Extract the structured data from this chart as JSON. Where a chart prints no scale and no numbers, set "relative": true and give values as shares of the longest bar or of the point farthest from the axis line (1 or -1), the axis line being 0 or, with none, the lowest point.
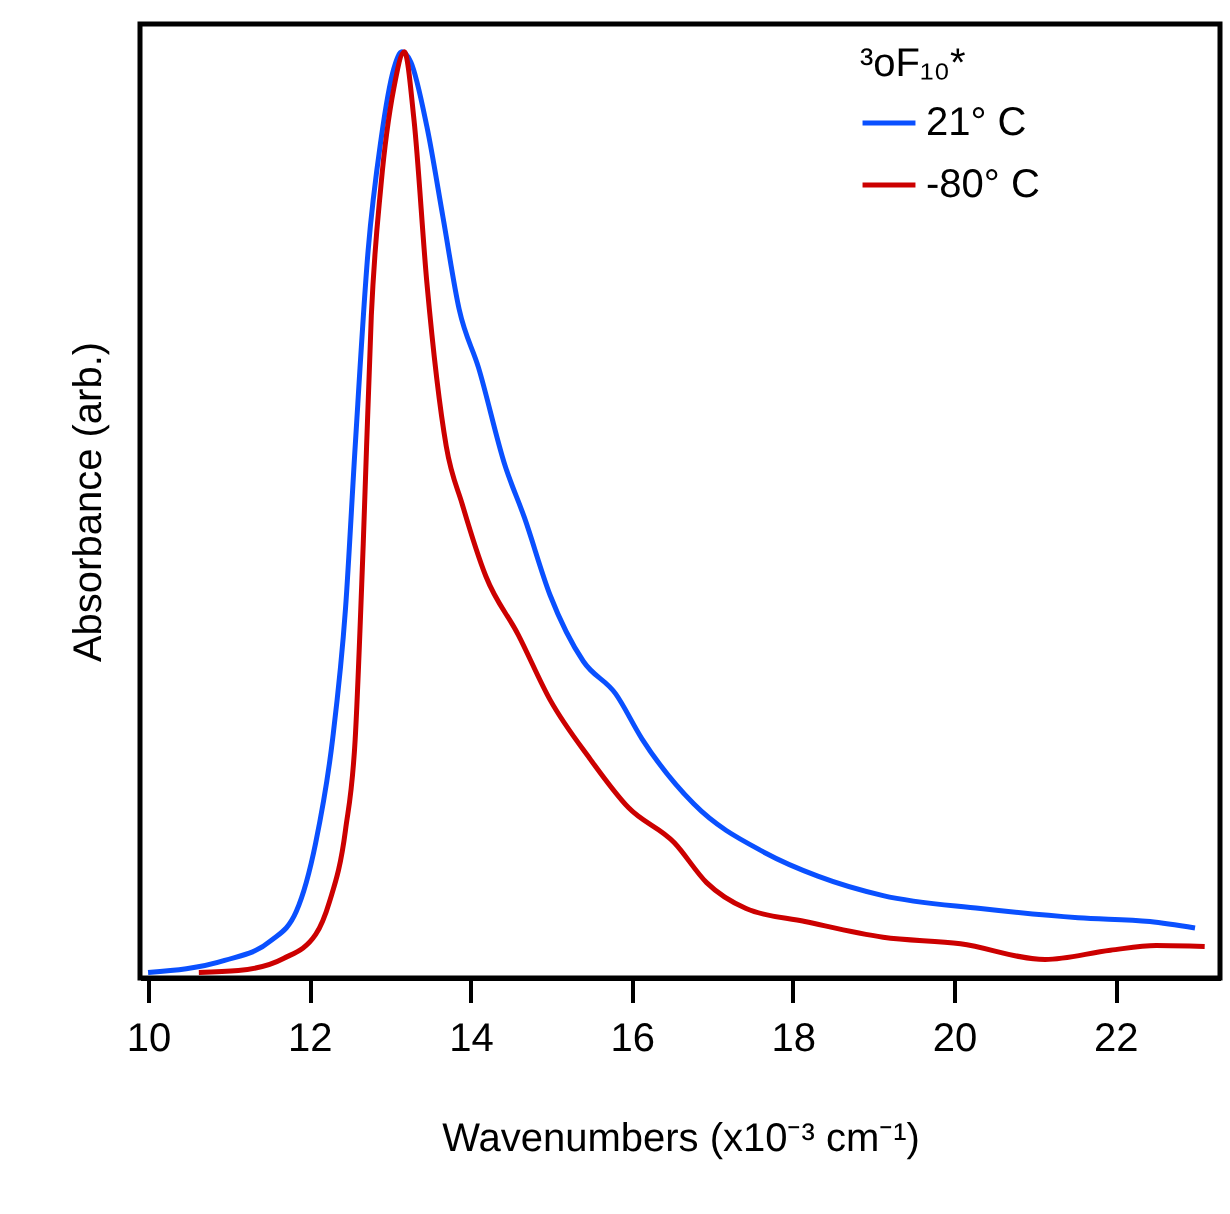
{
  "chart_data": {
    "type": "line",
    "relative": true,
    "xlabel": "Wavenumbers (x10⁻³ cm⁻¹)",
    "ylabel": "Absorbance (arb.)",
    "legend_title": "³oF₁₀*",
    "legend": "top right",
    "grid": false,
    "marker": "none",
    "line_style": "solid",
    "xlim": [
      9.9,
      23.3
    ],
    "xticks": [
      10,
      12,
      14,
      16,
      18,
      20,
      22
    ],
    "series": [
      {
        "name": "21° C",
        "color": "#0a50ff",
        "x": [
          10.0,
          10.95,
          11.52,
          11.84,
          12.08,
          12.29,
          12.45,
          12.57,
          12.73,
          12.89,
          13.05,
          13.15,
          13.26,
          13.46,
          13.66,
          13.86,
          14.1,
          14.43,
          14.67,
          14.99,
          15.4,
          15.8,
          16.13,
          16.77,
          17.66,
          18.31,
          19.12,
          20.33,
          21.54,
          22.43,
          22.99
        ],
        "values": [
          0.006,
          0.019,
          0.04,
          0.072,
          0.146,
          0.258,
          0.399,
          0.574,
          0.785,
          0.905,
          0.982,
          1.0,
          0.989,
          0.919,
          0.821,
          0.722,
          0.659,
          0.553,
          0.497,
          0.413,
          0.342,
          0.307,
          0.258,
          0.188,
          0.135,
          0.11,
          0.089,
          0.075,
          0.065,
          0.061,
          0.054
        ]
      },
      {
        "name": "-80° C",
        "color": "#cc0000",
        "x": [
          10.63,
          11.12,
          11.68,
          12.08,
          12.25,
          12.45,
          12.57,
          12.67,
          12.77,
          12.89,
          13.05,
          13.18,
          13.3,
          13.46,
          13.7,
          13.9,
          14.19,
          14.59,
          14.99,
          15.48,
          15.96,
          16.53,
          16.93,
          17.42,
          18.15,
          19.12,
          20.08,
          21.13,
          21.94,
          22.51,
          23.11
        ],
        "values": [
          0.006,
          0.008,
          0.021,
          0.047,
          0.082,
          0.16,
          0.258,
          0.469,
          0.715,
          0.856,
          0.961,
          1.0,
          0.926,
          0.75,
          0.574,
          0.511,
          0.434,
          0.371,
          0.3,
          0.237,
          0.184,
          0.146,
          0.103,
          0.075,
          0.061,
          0.044,
          0.037,
          0.02,
          0.03,
          0.035,
          0.034
        ]
      }
    ]
  }
}
